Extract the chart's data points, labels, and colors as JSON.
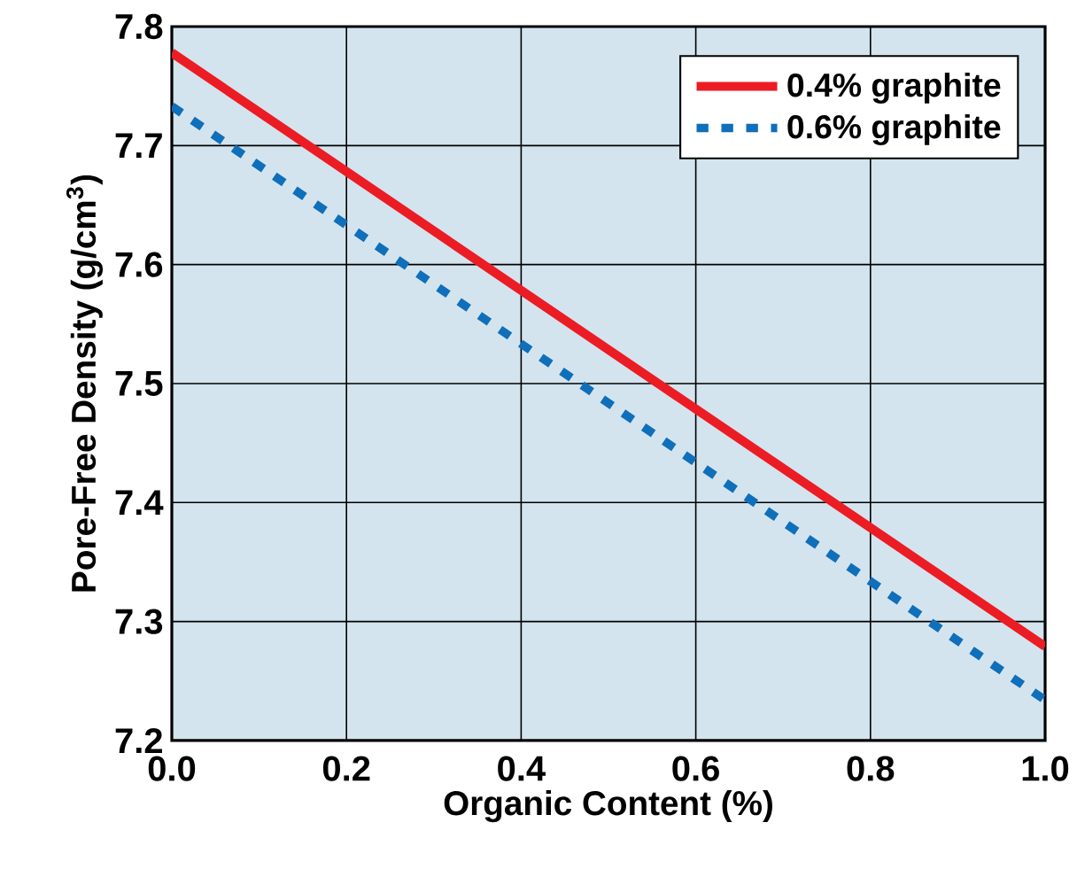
{
  "chart_data": {
    "type": "line",
    "xlabel": "Organic Content (%)",
    "ylabel": "Pore-Free Density (g/cm$^{3}$)",
    "x": [
      0,
      1
    ],
    "series": [
      {
        "name": "0.4% graphite",
        "color": "#ec1c24",
        "values": [
          7.778,
          7.279
        ],
        "line_style": "solid"
      },
      {
        "name": "0.6% graphite",
        "color": "#0f6fba",
        "values": [
          7.733,
          7.234
        ],
        "line_style": "dashed"
      }
    ],
    "xlim": [
      0,
      1
    ],
    "ylim": [
      7.2,
      7.8
    ],
    "xticks": [
      {
        "value": 0,
        "label": "0.0"
      },
      0.2,
      0.4,
      0.6,
      0.8,
      {
        "value": 1,
        "label": "1.0"
      }
    ],
    "yticks": [
      7.2,
      7.3,
      7.4,
      7.5,
      7.6,
      7.7,
      7.8
    ],
    "grid": true,
    "legend": "top right",
    "marker": "none"
  }
}
